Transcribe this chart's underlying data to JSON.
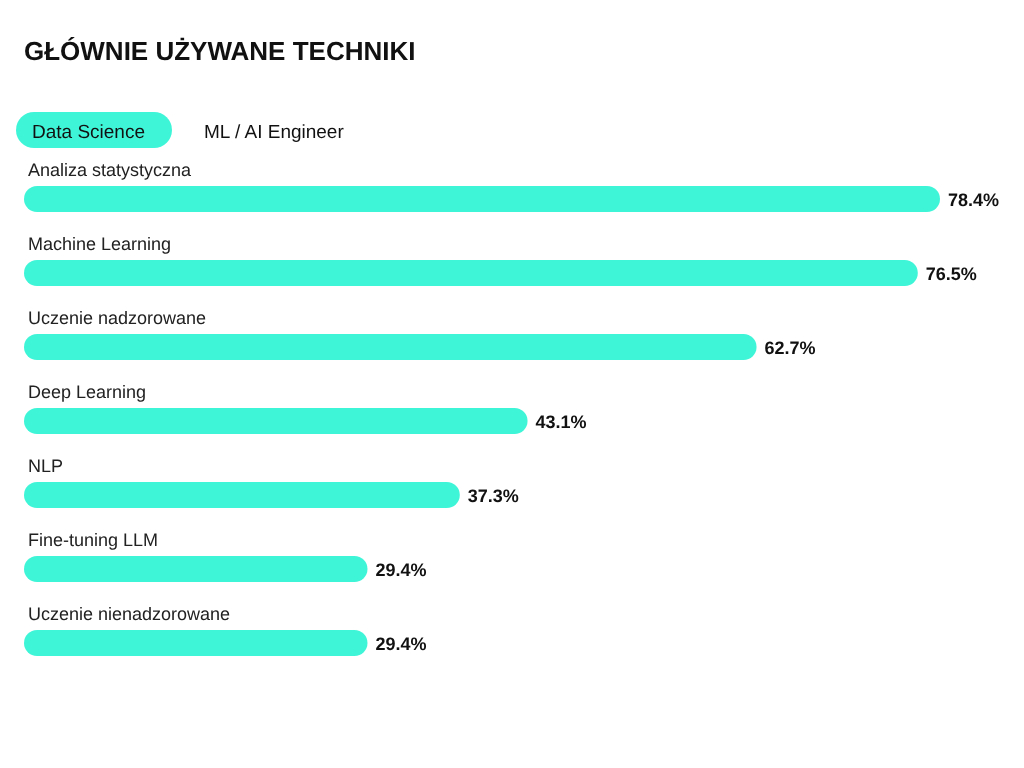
{
  "chart_data": {
    "type": "bar",
    "orientation": "horizontal",
    "title": "GŁÓWNIE UŻYWANE TECHNIKI",
    "categories": [
      "Analiza statystyczna",
      "Machine Learning",
      "Uczenie nadzorowane",
      "Deep Learning",
      "NLP",
      "Fine-tuning LLM",
      "Uczenie nienadzorowane"
    ],
    "series": [
      {
        "name": "Data Science",
        "color": "#3ff5d8",
        "values": [
          78.4,
          76.5,
          62.7,
          43.1,
          37.3,
          29.4,
          29.4
        ],
        "value_labels": [
          "78.4%",
          "76.5%",
          "62.7%",
          "43.1%",
          "37.3%",
          "29.4%",
          "29.4%"
        ]
      }
    ],
    "annotations": [
      "ML / AI Engineer"
    ],
    "legend": "top left"
  }
}
